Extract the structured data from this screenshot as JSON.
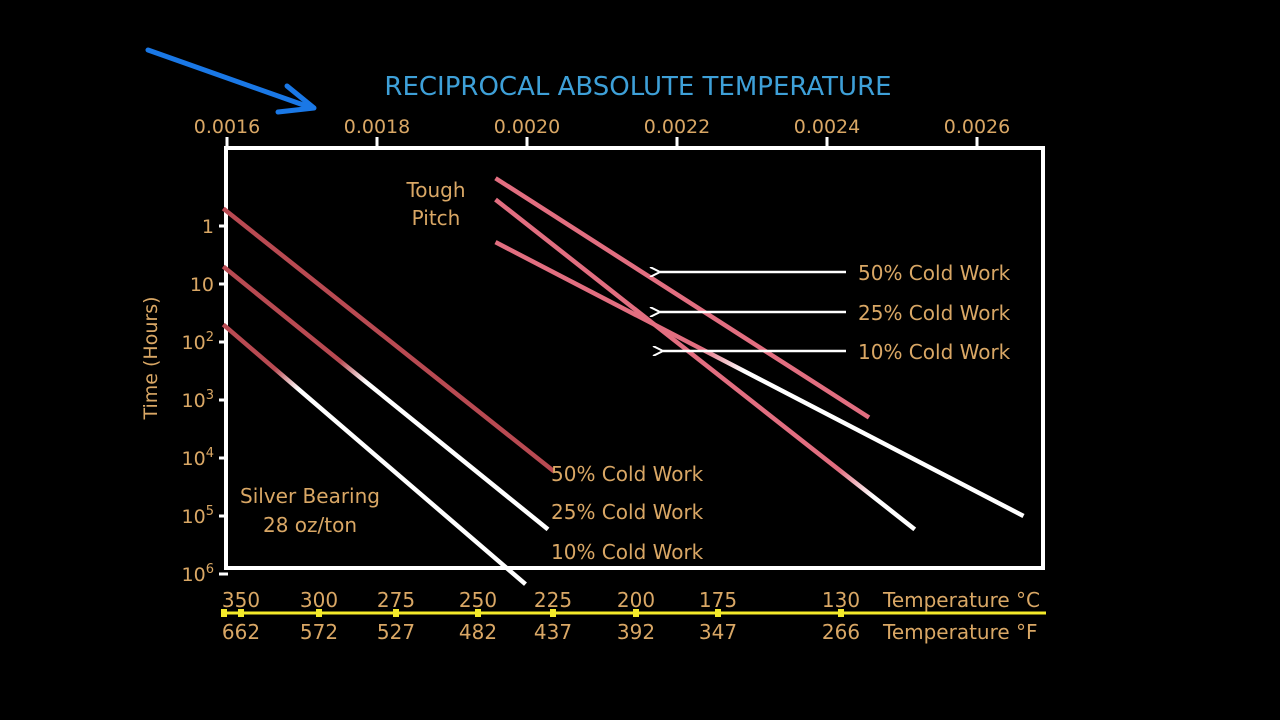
{
  "chart_data": {
    "type": "line",
    "title": "RECIPROCAL ABSOLUTE TEMPERATURE",
    "ylabel": "Time (Hours)",
    "y_scale": "log",
    "x_ticks": [
      "0.0016",
      "0.0018",
      "0.0020",
      "0.0022",
      "0.0024",
      "0.0026"
    ],
    "y_ticks": [
      {
        "base": "1",
        "exp": ""
      },
      {
        "base": "10",
        "exp": ""
      },
      {
        "base": "10",
        "exp": "2"
      },
      {
        "base": "10",
        "exp": "3"
      },
      {
        "base": "10",
        "exp": "4"
      },
      {
        "base": "10",
        "exp": "5"
      },
      {
        "base": "10",
        "exp": "6"
      }
    ],
    "temp_c_label": "Temperature °C",
    "temp_f_label": "Temperature °F",
    "temps_c": [
      "350",
      "300",
      "275",
      "250",
      "225",
      "200",
      "175",
      "130"
    ],
    "temps_f": [
      "662",
      "572",
      "527",
      "482",
      "437",
      "392",
      "347",
      "266"
    ],
    "groups": [
      {
        "name_lines": [
          "Silver Bearing",
          "28 oz/ton"
        ],
        "series": [
          {
            "name": "50% Cold Work",
            "start": [
              0.001595,
              0.5
            ],
            "end": [
              0.002036,
              17000
            ]
          },
          {
            "name": "25% Cold Work",
            "start": [
              0.001595,
              5
            ],
            "end": [
              0.002028,
              170000
            ]
          },
          {
            "name": "10% Cold Work",
            "start": [
              0.001595,
              50
            ],
            "end": [
              0.001998,
              1500000
            ]
          }
        ]
      },
      {
        "name_lines": [
          "Tough",
          "Pitch"
        ],
        "series": [
          {
            "name": "50% Cold Work",
            "start": [
              0.001958,
              0.15
            ],
            "end": [
              0.002456,
              2000
            ]
          },
          {
            "name": "25% Cold Work",
            "start": [
              0.001958,
              0.35
            ],
            "end": [
              0.002517,
              170000
            ]
          },
          {
            "name": "10% Cold Work",
            "start": [
              0.001958,
              1.9
            ],
            "end": [
              0.002662,
              100000
            ]
          }
        ]
      }
    ]
  },
  "colors": {
    "background": "#000000",
    "frame": "#ffffff",
    "title": "#3ea0d8",
    "label": "#d9a765",
    "silver_line": "#b94a52",
    "tough_line": "#e26e80",
    "cold_end": "#ffffff",
    "temp_axis": "#f4ea2a",
    "pointer_arrow": "#1a78e6"
  }
}
